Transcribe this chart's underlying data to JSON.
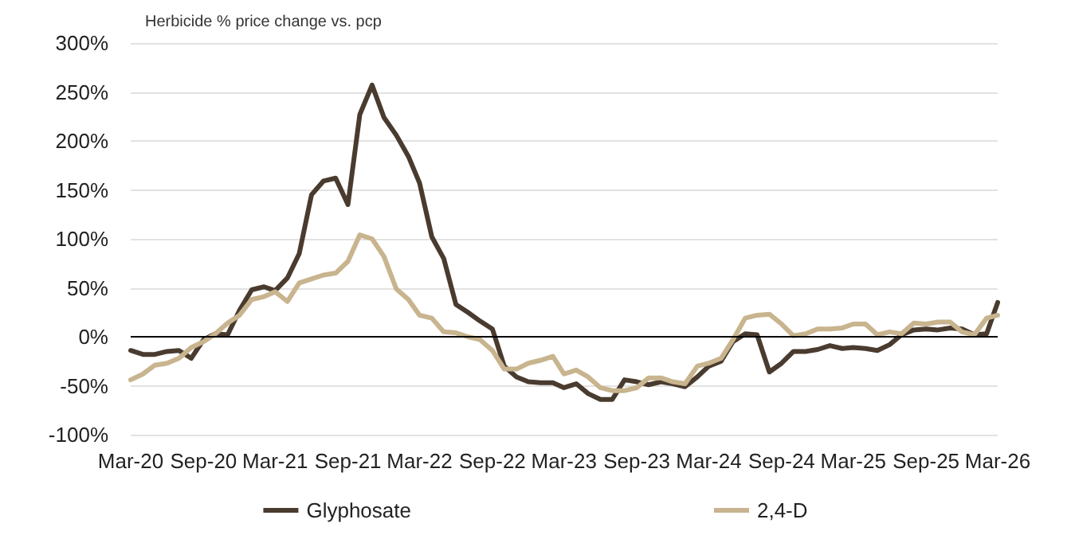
{
  "chart_data": {
    "type": "line",
    "subtitle": "Herbicide % price change vs. pcp",
    "x": [
      "2020-03",
      "2020-04",
      "2020-05",
      "2020-06",
      "2020-07",
      "2020-08",
      "2020-09",
      "2020-10",
      "2020-11",
      "2020-12",
      "2021-01",
      "2021-02",
      "2021-03",
      "2021-04",
      "2021-05",
      "2021-06",
      "2021-07",
      "2021-08",
      "2021-09",
      "2021-10",
      "2021-11",
      "2021-12",
      "2022-01",
      "2022-02",
      "2022-03",
      "2022-04",
      "2022-05",
      "2022-06",
      "2022-07",
      "2022-08",
      "2022-09",
      "2022-10",
      "2022-11",
      "2022-12",
      "2023-01",
      "2023-02",
      "2023-03",
      "2023-04",
      "2023-05",
      "2023-06",
      "2023-07",
      "2023-08",
      "2023-09",
      "2023-10",
      "2023-11",
      "2023-12",
      "2024-01",
      "2024-02",
      "2024-03",
      "2024-04",
      "2024-05",
      "2024-06",
      "2024-07",
      "2024-08",
      "2024-09",
      "2024-10",
      "2024-11",
      "2024-12",
      "2025-01",
      "2025-02",
      "2025-03",
      "2025-04",
      "2025-05",
      "2025-06",
      "2025-07",
      "2025-08",
      "2025-09",
      "2025-10",
      "2025-11",
      "2025-12",
      "2026-01",
      "2026-02",
      "2026-03"
    ],
    "series": [
      {
        "name": "Glyphosate",
        "color": "#4a3b2f",
        "values": [
          -14,
          -18,
          -18,
          -15,
          -14,
          -22,
          -3,
          3,
          2,
          27,
          48,
          51,
          47,
          60,
          85,
          145,
          159,
          162,
          135,
          227,
          257,
          224,
          206,
          184,
          157,
          102,
          80,
          33,
          25,
          16,
          8,
          -30,
          -41,
          -46,
          -47,
          -47,
          -52,
          -48,
          -58,
          -64,
          -64,
          -44,
          -46,
          -49,
          -46,
          -48,
          -51,
          -41,
          -30,
          -25,
          -5,
          3,
          2,
          -36,
          -27,
          -15,
          -15,
          -13,
          -9,
          -12,
          -11,
          -12,
          -14,
          -8,
          2,
          7,
          8,
          7,
          9,
          8,
          2,
          3,
          35
        ]
      },
      {
        "name": "2,4-D",
        "color": "#c8b48e",
        "values": [
          -44,
          -38,
          -29,
          -27,
          -22,
          -11,
          -5,
          3,
          14,
          22,
          38,
          41,
          46,
          36,
          55,
          59,
          63,
          65,
          77,
          104,
          100,
          82,
          49,
          38,
          22,
          19,
          5,
          4,
          0,
          -3,
          -14,
          -33,
          -33,
          -27,
          -24,
          -20,
          -38,
          -34,
          -41,
          -52,
          -55,
          -55,
          -52,
          -42,
          -42,
          -46,
          -48,
          -30,
          -27,
          -22,
          -3,
          19,
          22,
          23,
          13,
          1,
          3,
          8,
          8,
          9,
          13,
          13,
          2,
          5,
          3,
          14,
          13,
          15,
          15,
          5,
          2,
          19,
          22
        ]
      }
    ],
    "xlim": [
      "2020-03",
      "2026-03"
    ],
    "xticks": [
      {
        "value": "2020-03",
        "label": "Mar-20"
      },
      {
        "value": "2020-09",
        "label": "Sep-20"
      },
      {
        "value": "2021-03",
        "label": "Mar-21"
      },
      {
        "value": "2021-09",
        "label": "Sep-21"
      },
      {
        "value": "2022-03",
        "label": "Mar-22"
      },
      {
        "value": "2022-09",
        "label": "Sep-22"
      },
      {
        "value": "2023-03",
        "label": "Mar-23"
      },
      {
        "value": "2023-09",
        "label": "Sep-23"
      },
      {
        "value": "2024-03",
        "label": "Mar-24"
      },
      {
        "value": "2024-09",
        "label": "Sep-24"
      },
      {
        "value": "2025-03",
        "label": "Mar-25"
      },
      {
        "value": "2025-09",
        "label": "Sep-25"
      },
      {
        "value": "2026-03",
        "label": "Mar-26"
      }
    ],
    "ylim": [
      -100,
      300
    ],
    "yticks": [
      {
        "value": -100,
        "label": "-100%"
      },
      {
        "value": -50,
        "label": "-50%"
      },
      {
        "value": 0,
        "label": "0%"
      },
      {
        "value": 50,
        "label": "50%"
      },
      {
        "value": 100,
        "label": "100%"
      },
      {
        "value": 150,
        "label": "150%"
      },
      {
        "value": 200,
        "label": "200%"
      },
      {
        "value": 250,
        "label": "250%"
      },
      {
        "value": 300,
        "label": "300%"
      }
    ],
    "ref_lines": [
      {
        "axis": "y",
        "value": 0,
        "color": "#000000"
      }
    ],
    "grid": "y",
    "legend": "bottom",
    "marker": "none",
    "line_style": "solid"
  }
}
